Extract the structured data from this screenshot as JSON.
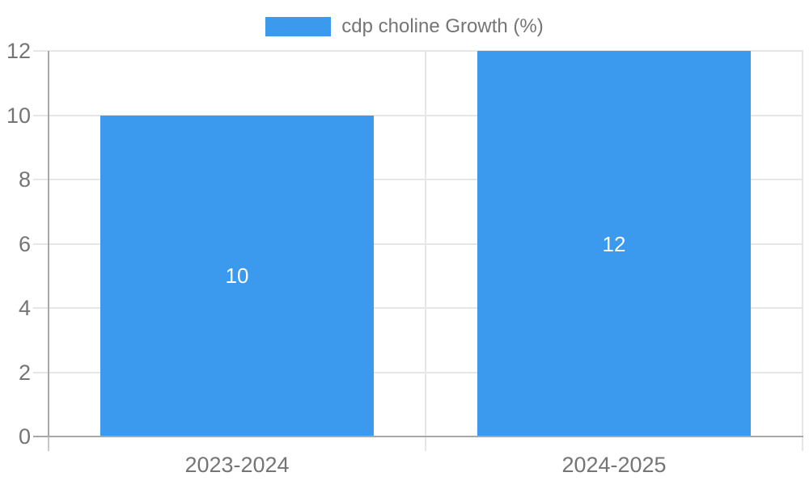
{
  "legend": {
    "label": "cdp choline Growth (%)"
  },
  "chart_data": {
    "type": "bar",
    "title": "cdp choline Growth (%)",
    "series_name": "cdp choline Growth (%)",
    "categories": [
      "2023-2024",
      "2024-2025"
    ],
    "values": [
      10,
      12
    ],
    "bar_labels": [
      "10",
      "12"
    ],
    "y_ticks": [
      0,
      2,
      4,
      6,
      8,
      10,
      12
    ],
    "ylim": [
      0,
      12
    ],
    "xlabel": "",
    "ylabel": "",
    "grid": true,
    "legend_position": "top",
    "colors": {
      "bar": "#3B99EE",
      "bar_label": "#FFFFFF",
      "axis_text": "#757575",
      "grid_line": "#E6E6E6",
      "axis_line": "#A8A8A8",
      "tick_line": "#C9C9C9",
      "background": "#FFFFFF"
    }
  }
}
